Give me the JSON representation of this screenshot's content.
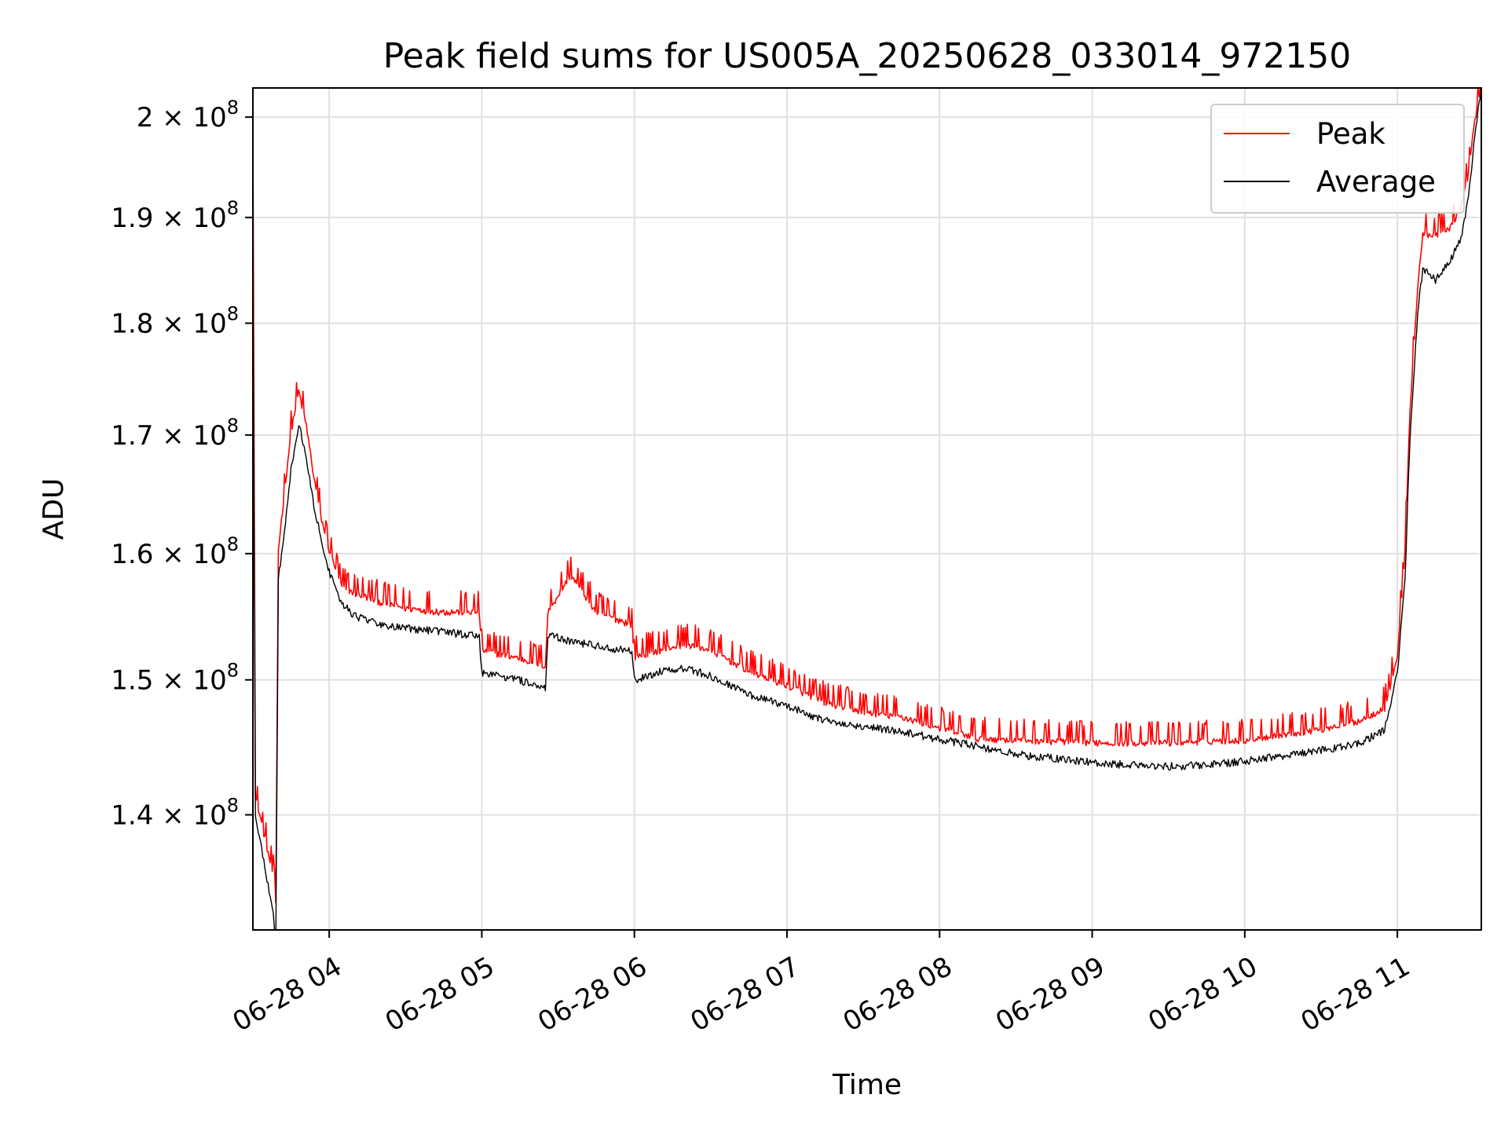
{
  "chart_data": {
    "type": "line",
    "title": "Peak field sums for US005A_20250628_033014_972150",
    "xlabel": "Time",
    "ylabel": "ADU",
    "y_scale": "log",
    "ylim": [
      132000000,
      203000000
    ],
    "xlim": [
      "2025-06-28 03:30",
      "2025-06-28 11:33"
    ],
    "grid": true,
    "legend_position": "top-right",
    "x_ticks": [
      {
        "t": "2025-06-28 04:00",
        "label": "06-28 04"
      },
      {
        "t": "2025-06-28 05:00",
        "label": "06-28 05"
      },
      {
        "t": "2025-06-28 06:00",
        "label": "06-28 06"
      },
      {
        "t": "2025-06-28 07:00",
        "label": "06-28 07"
      },
      {
        "t": "2025-06-28 08:00",
        "label": "06-28 08"
      },
      {
        "t": "2025-06-28 09:00",
        "label": "06-28 09"
      },
      {
        "t": "2025-06-28 10:00",
        "label": "06-28 10"
      },
      {
        "t": "2025-06-28 11:00",
        "label": "06-28 11"
      }
    ],
    "y_ticks": [
      {
        "value": 140000000,
        "mantissa": "1.4",
        "base": "10",
        "exp": "8"
      },
      {
        "value": 150000000,
        "mantissa": "1.5",
        "base": "10",
        "exp": "8"
      },
      {
        "value": 160000000,
        "mantissa": "1.6",
        "base": "10",
        "exp": "8"
      },
      {
        "value": 170000000,
        "mantissa": "1.7",
        "base": "10",
        "exp": "8"
      },
      {
        "value": 180000000,
        "mantissa": "1.8",
        "base": "10",
        "exp": "8"
      },
      {
        "value": 190000000,
        "mantissa": "1.9",
        "base": "10",
        "exp": "8"
      },
      {
        "value": 200000000,
        "mantissa": "2",
        "base": "10",
        "exp": "8"
      }
    ],
    "series": [
      {
        "name": "Average",
        "color": "#000000",
        "x": [
          "2025-06-28 03:30",
          "2025-06-28 03:31",
          "2025-06-28 03:33",
          "2025-06-28 03:36",
          "2025-06-28 03:38",
          "2025-06-28 03:39",
          "2025-06-28 03:40",
          "2025-06-28 03:42",
          "2025-06-28 03:45",
          "2025-06-28 03:48",
          "2025-06-28 03:51",
          "2025-06-28 03:54",
          "2025-06-28 03:57",
          "2025-06-28 04:00",
          "2025-06-28 04:05",
          "2025-06-28 04:10",
          "2025-06-28 04:20",
          "2025-06-28 04:30",
          "2025-06-28 04:45",
          "2025-06-28 04:59",
          "2025-06-28 05:00",
          "2025-06-28 05:10",
          "2025-06-28 05:20",
          "2025-06-28 05:25",
          "2025-06-28 05:26",
          "2025-06-28 05:35",
          "2025-06-28 05:45",
          "2025-06-28 05:59",
          "2025-06-28 06:00",
          "2025-06-28 06:10",
          "2025-06-28 06:20",
          "2025-06-28 06:30",
          "2025-06-28 06:45",
          "2025-06-28 07:00",
          "2025-06-28 07:15",
          "2025-06-28 07:30",
          "2025-06-28 07:45",
          "2025-06-28 08:00",
          "2025-06-28 08:15",
          "2025-06-28 08:30",
          "2025-06-28 08:45",
          "2025-06-28 09:00",
          "2025-06-28 09:15",
          "2025-06-28 09:30",
          "2025-06-28 09:45",
          "2025-06-28 10:00",
          "2025-06-28 10:15",
          "2025-06-28 10:30",
          "2025-06-28 10:45",
          "2025-06-28 10:55",
          "2025-06-28 11:00",
          "2025-06-28 11:03",
          "2025-06-28 11:05",
          "2025-06-28 11:08",
          "2025-06-28 11:10",
          "2025-06-28 11:15",
          "2025-06-28 11:20",
          "2025-06-28 11:25",
          "2025-06-28 11:28",
          "2025-06-28 11:30",
          "2025-06-28 11:33"
        ],
        "values": [
          186000000,
          140000000,
          138000000,
          135000000,
          133000000,
          131000000,
          158000000,
          161000000,
          167000000,
          171000000,
          168000000,
          164000000,
          161000000,
          158500000,
          156000000,
          155000000,
          154300000,
          154000000,
          153700000,
          153400000,
          150500000,
          150200000,
          149700000,
          149400000,
          153500000,
          153000000,
          152600000,
          152200000,
          150000000,
          150600000,
          150900000,
          150300000,
          148900000,
          148000000,
          146900000,
          146500000,
          146100000,
          145500000,
          145000000,
          144400000,
          144100000,
          143800000,
          143600000,
          143500000,
          143600000,
          143900000,
          144300000,
          144700000,
          145200000,
          146200000,
          150500000,
          158000000,
          170000000,
          181000000,
          185000000,
          184000000,
          185500000,
          188000000,
          192000000,
          197000000,
          203000000
        ]
      },
      {
        "name": "Peak",
        "color": "#ff0000",
        "x": [
          "2025-06-28 03:30",
          "2025-06-28 03:31",
          "2025-06-28 03:33",
          "2025-06-28 03:36",
          "2025-06-28 03:38",
          "2025-06-28 03:39",
          "2025-06-28 03:40",
          "2025-06-28 03:42",
          "2025-06-28 03:45",
          "2025-06-28 03:48",
          "2025-06-28 03:51",
          "2025-06-28 03:54",
          "2025-06-28 03:57",
          "2025-06-28 04:00",
          "2025-06-28 04:05",
          "2025-06-28 04:10",
          "2025-06-28 04:20",
          "2025-06-28 04:30",
          "2025-06-28 04:45",
          "2025-06-28 04:59",
          "2025-06-28 05:00",
          "2025-06-28 05:10",
          "2025-06-28 05:20",
          "2025-06-28 05:25",
          "2025-06-28 05:26",
          "2025-06-28 05:35",
          "2025-06-28 05:45",
          "2025-06-28 05:59",
          "2025-06-28 06:00",
          "2025-06-28 06:10",
          "2025-06-28 06:20",
          "2025-06-28 06:30",
          "2025-06-28 06:45",
          "2025-06-28 07:00",
          "2025-06-28 07:15",
          "2025-06-28 07:30",
          "2025-06-28 07:45",
          "2025-06-28 08:00",
          "2025-06-28 08:15",
          "2025-06-28 08:30",
          "2025-06-28 08:45",
          "2025-06-28 09:00",
          "2025-06-28 09:15",
          "2025-06-28 09:30",
          "2025-06-28 09:45",
          "2025-06-28 10:00",
          "2025-06-28 10:15",
          "2025-06-28 10:30",
          "2025-06-28 10:45",
          "2025-06-28 10:55",
          "2025-06-28 11:00",
          "2025-06-28 11:03",
          "2025-06-28 11:05",
          "2025-06-28 11:08",
          "2025-06-28 11:10",
          "2025-06-28 11:15",
          "2025-06-28 11:20",
          "2025-06-28 11:25",
          "2025-06-28 11:28",
          "2025-06-28 11:30",
          "2025-06-28 11:33"
        ],
        "values": [
          198000000,
          141000000,
          139500000,
          137000000,
          135500000,
          133500000,
          160000000,
          164000000,
          170000000,
          173500000,
          170500000,
          166000000,
          162500000,
          160000000,
          157000000,
          156500000,
          155800000,
          155300000,
          155000000,
          155000000,
          152000000,
          151600000,
          151100000,
          150800000,
          155000000,
          158000000,
          155000000,
          154000000,
          151500000,
          152000000,
          152500000,
          152000000,
          150400000,
          149300000,
          148000000,
          147300000,
          146900000,
          146100000,
          145300000,
          145200000,
          145100000,
          145000000,
          145000000,
          145000000,
          145100000,
          145200000,
          145600000,
          146000000,
          146600000,
          147600000,
          151500000,
          160000000,
          172000000,
          183000000,
          188000000,
          188000000,
          188500000,
          190500000,
          194000000,
          198500000,
          203000000
        ]
      }
    ]
  }
}
